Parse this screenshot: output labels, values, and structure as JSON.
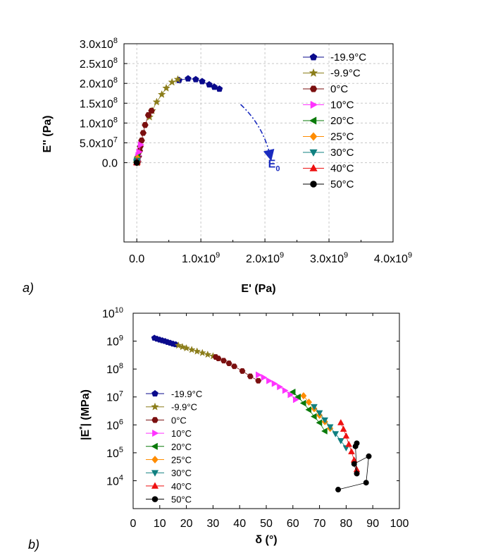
{
  "chart_data": [
    {
      "id": "a",
      "panel_label": "a)",
      "type": "scatter",
      "title": "",
      "xlabel": "E' (Pa)",
      "ylabel": "E'' (Pa)",
      "xlim": [
        -200000000,
        4000000000
      ],
      "ylim": [
        -200000000,
        300000000
      ],
      "xticks": [
        {
          "v": 0,
          "label": "0.0"
        },
        {
          "v": 1000000000,
          "label": "1.0x10",
          "exp": "9"
        },
        {
          "v": 2000000000,
          "label": "2.0x10",
          "exp": "9"
        },
        {
          "v": 3000000000,
          "label": "3.0x10",
          "exp": "9"
        },
        {
          "v": 4000000000,
          "label": "4.0x10",
          "exp": "9"
        }
      ],
      "yticks": [
        {
          "v": 0,
          "label": "0.0"
        },
        {
          "v": 50000000,
          "label": "5.0x10",
          "exp": "7"
        },
        {
          "v": 100000000,
          "label": "1.0x10",
          "exp": "8"
        },
        {
          "v": 150000000,
          "label": "1.5x10",
          "exp": "8"
        },
        {
          "v": 200000000,
          "label": "2.0x10",
          "exp": "8"
        },
        {
          "v": 250000000,
          "label": "2.5x10",
          "exp": "8"
        },
        {
          "v": 300000000,
          "label": "3.0x10",
          "exp": "8"
        }
      ],
      "grid": true,
      "legend_position": "top-right",
      "annotation": {
        "text": "E",
        "sub": "0",
        "arrow_from": [
          1620000000,
          147000000
        ],
        "arrow_to": [
          2080000000,
          18000000
        ],
        "text_at": [
          2050000000,
          -12000000
        ]
      },
      "series": [
        {
          "name": "-19.9°C",
          "marker": "pentagon",
          "color": "#0a0a8c",
          "points": [
            [
              660000000,
              208000000
            ],
            [
              800000000,
              212000000
            ],
            [
              920000000,
              210000000
            ],
            [
              1020000000,
              205000000
            ],
            [
              1130000000,
              197000000
            ],
            [
              1210000000,
              191000000
            ],
            [
              1290000000,
              186000000
            ]
          ]
        },
        {
          "name": "-9.9°C",
          "marker": "star",
          "color": "#8b7d1a",
          "points": [
            [
              200000000,
              115000000
            ],
            [
              240000000,
              131000000
            ],
            [
              310000000,
              153000000
            ],
            [
              390000000,
              172000000
            ],
            [
              460000000,
              188000000
            ],
            [
              550000000,
              203000000
            ],
            [
              640000000,
              210000000
            ]
          ]
        },
        {
          "name": "0°C",
          "marker": "hexagon",
          "color": "#7a0f0f",
          "points": [
            [
              20000000,
              3000000
            ],
            [
              30000000,
              16000000
            ],
            [
              45000000,
              30000000
            ],
            [
              55000000,
              41000000
            ],
            [
              75000000,
              56000000
            ],
            [
              100000000,
              75000000
            ],
            [
              130000000,
              95000000
            ],
            [
              180000000,
              120000000
            ],
            [
              230000000,
              131000000
            ]
          ]
        },
        {
          "name": "10°C",
          "marker": "triangle-right",
          "color": "#ff33ff",
          "points": [
            [
              2000000,
              1000000
            ],
            [
              4000000,
              3000000
            ],
            [
              6000000,
              5000000
            ],
            [
              9000000,
              8000000
            ],
            [
              14000000,
              12000000
            ],
            [
              22000000,
              18000000
            ],
            [
              35000000,
              27000000
            ],
            [
              60000000,
              45000000
            ]
          ]
        },
        {
          "name": "20°C",
          "marker": "triangle-left",
          "color": "#0a7a0a",
          "points": [
            [
              1000000,
              500000
            ],
            [
              2000000,
              1500000
            ],
            [
              3000000,
              3000000
            ],
            [
              5000000,
              5000000
            ],
            [
              8000000,
              9000000
            ],
            [
              12000000,
              14000000
            ]
          ]
        },
        {
          "name": "25°C",
          "marker": "diamond",
          "color": "#ff8c00",
          "points": [
            [
              1000000,
              400000
            ],
            [
              2000000,
              1000000
            ],
            [
              3000000,
              2200000
            ],
            [
              5000000,
              4000000
            ],
            [
              8000000,
              7500000
            ],
            [
              11000000,
              11000000
            ]
          ]
        },
        {
          "name": "30°C",
          "marker": "triangle-down",
          "color": "#108080",
          "points": [
            [
              500000,
              200000
            ],
            [
              1000000,
              800000
            ],
            [
              2000000,
              1800000
            ],
            [
              3000000,
              3000000
            ],
            [
              5000000,
              5500000
            ]
          ]
        },
        {
          "name": "40°C",
          "marker": "triangle-up",
          "color": "#ee1111",
          "points": [
            [
              300000,
              100000
            ],
            [
              600000,
              400000
            ],
            [
              1000000,
              900000
            ],
            [
              2000000,
              1800000
            ],
            [
              3000000,
              3000000
            ]
          ]
        },
        {
          "name": "50°C",
          "marker": "circle",
          "color": "#000000",
          "points": [
            [
              100000,
              20000
            ],
            [
              200000,
              80000
            ],
            [
              300000,
              150000
            ],
            [
              400000,
              200000
            ]
          ]
        }
      ]
    },
    {
      "id": "b",
      "panel_label": "b)",
      "type": "scatter",
      "title": "",
      "xlabel": "δ (°)",
      "ylabel": "|E*| (MPa)",
      "xlim": [
        0,
        100
      ],
      "ylim": [
        1000,
        10000000000
      ],
      "yscale": "log",
      "xticks": [
        {
          "v": 0,
          "label": "0"
        },
        {
          "v": 10,
          "label": "10"
        },
        {
          "v": 20,
          "label": "20"
        },
        {
          "v": 30,
          "label": "30"
        },
        {
          "v": 40,
          "label": "40"
        },
        {
          "v": 50,
          "label": "50"
        },
        {
          "v": 60,
          "label": "60"
        },
        {
          "v": 70,
          "label": "70"
        },
        {
          "v": 80,
          "label": "80"
        },
        {
          "v": 90,
          "label": "90"
        },
        {
          "v": 100,
          "label": "100"
        }
      ],
      "yticks": [
        {
          "v": 10000,
          "label": "10",
          "exp": "4"
        },
        {
          "v": 100000,
          "label": "10",
          "exp": "5"
        },
        {
          "v": 1000000,
          "label": "10",
          "exp": "6"
        },
        {
          "v": 10000000,
          "label": "10",
          "exp": "7"
        },
        {
          "v": 100000000,
          "label": "10",
          "exp": "8"
        },
        {
          "v": 1000000000,
          "label": "10",
          "exp": "9"
        },
        {
          "v": 10000000000,
          "label": "10",
          "exp": "10"
        }
      ],
      "grid": false,
      "legend_position": "bottom-left",
      "series": [
        {
          "name": "-19.9°C",
          "marker": "pentagon",
          "color": "#0a0a8c",
          "points": [
            [
              8,
              1300000000
            ],
            [
              9,
              1200000000
            ],
            [
              10,
              1120000000
            ],
            [
              11,
              1050000000
            ],
            [
              12,
              990000000
            ],
            [
              13,
              920000000
            ],
            [
              14,
              860000000
            ],
            [
              15,
              800000000
            ],
            [
              16,
              760000000
            ]
          ]
        },
        {
          "name": "-9.9°C",
          "marker": "star",
          "color": "#8b7d1a",
          "points": [
            [
              17,
              700000000
            ],
            [
              18.5,
              620000000
            ],
            [
              20,
              560000000
            ],
            [
              22,
              490000000
            ],
            [
              24,
              430000000
            ],
            [
              26,
              380000000
            ],
            [
              28,
              330000000
            ],
            [
              30,
              290000000
            ]
          ]
        },
        {
          "name": "0°C",
          "marker": "hexagon",
          "color": "#7a0f0f",
          "points": [
            [
              31,
              270000000
            ],
            [
              32,
              240000000
            ],
            [
              34,
              200000000
            ],
            [
              36,
              160000000
            ],
            [
              38,
              125000000
            ],
            [
              41,
              85000000
            ],
            [
              44,
              55000000
            ],
            [
              47,
              38000000
            ]
          ]
        },
        {
          "name": "10°C",
          "marker": "triangle-right",
          "color": "#ff33ff",
          "points": [
            [
              47,
              62000000
            ],
            [
              49,
              50000000
            ],
            [
              51,
              38000000
            ],
            [
              53,
              30000000
            ],
            [
              55,
              23000000
            ],
            [
              57,
              17000000
            ],
            [
              59,
              12000000
            ],
            [
              61,
              8000000
            ]
          ]
        },
        {
          "name": "20°C",
          "marker": "triangle-left",
          "color": "#0a7a0a",
          "points": [
            [
              60,
              15000000
            ],
            [
              62,
              10000000
            ],
            [
              64,
              6000000
            ],
            [
              66,
              3500000
            ],
            [
              68,
              2000000
            ],
            [
              70,
              1200000
            ],
            [
              72,
              600000
            ]
          ]
        },
        {
          "name": "25°C",
          "marker": "diamond",
          "color": "#ff8c00",
          "points": [
            [
              64,
              11000000
            ],
            [
              66,
              6500000
            ],
            [
              68,
              3800000
            ],
            [
              70,
              2200000
            ],
            [
              72,
              1300000
            ],
            [
              74,
              750000
            ]
          ]
        },
        {
          "name": "30°C",
          "marker": "triangle-down",
          "color": "#108080",
          "points": [
            [
              68,
              4500000
            ],
            [
              70,
              2700000
            ],
            [
              72,
              1500000
            ],
            [
              74,
              850000
            ],
            [
              76,
              480000
            ],
            [
              78,
              270000
            ],
            [
              80,
              150000
            ]
          ]
        },
        {
          "name": "40°C",
          "marker": "triangle-up",
          "color": "#ee1111",
          "points": [
            [
              78,
              1200000
            ],
            [
              79,
              700000
            ],
            [
              80,
              400000
            ],
            [
              81,
              200000
            ],
            [
              82,
              110000
            ],
            [
              83,
              55000
            ],
            [
              84,
              25000
            ]
          ]
        },
        {
          "name": "50°C",
          "marker": "circle",
          "color": "#000000",
          "points": [
            [
              84,
              220000
            ],
            [
              83.5,
              170000
            ],
            [
              84,
              18000
            ],
            [
              83,
              40000
            ],
            [
              88.5,
              75000
            ],
            [
              87.5,
              8500
            ],
            [
              77,
              4800
            ]
          ]
        }
      ]
    }
  ]
}
